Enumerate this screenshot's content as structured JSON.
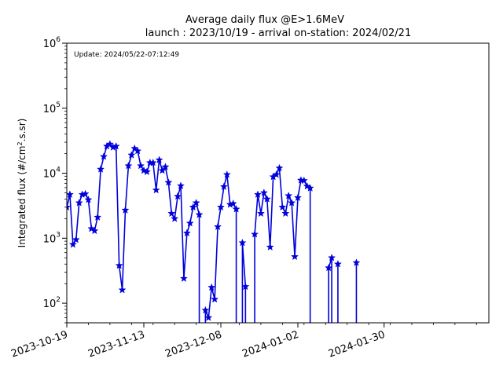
{
  "chart_data": {
    "type": "line",
    "title": "Average daily flux @E>1.6MeV",
    "subtitle": "launch : 2023/10/19 - arrival on-station: 2024/02/21",
    "annotation": "Update: 2024/05/22-07:12:49",
    "ylabel_prefix": "Integrated flux (#/cm",
    "ylabel_sup": "2",
    "ylabel_suffix": ".s.sr)",
    "yscale": "log",
    "ylim": [
      50,
      1000000
    ],
    "xlim": [
      "2023-10-19",
      "2024-03-04"
    ],
    "grid": false,
    "marker": "star",
    "line_color": "#0000dd",
    "y_ticks": [
      {
        "value": 100,
        "base": "10",
        "exp": "2"
      },
      {
        "value": 1000,
        "base": "10",
        "exp": "3"
      },
      {
        "value": 10000,
        "base": "10",
        "exp": "4"
      },
      {
        "value": 100000,
        "base": "10",
        "exp": "5"
      },
      {
        "value": 1000000,
        "base": "10",
        "exp": "6"
      }
    ],
    "x_ticks": [
      "2023-10-19",
      "2023-11-13",
      "2023-12-08",
      "2024-01-02",
      "2024-01-30"
    ],
    "series": [
      {
        "values": [
          [
            "2023-10-19",
            3000
          ],
          [
            "2023-10-20",
            4700
          ],
          [
            "2023-10-21",
            800
          ],
          [
            "2023-10-22",
            950
          ],
          [
            "2023-10-23",
            3500
          ],
          [
            "2023-10-24",
            4700
          ],
          [
            "2023-10-25",
            4800
          ],
          [
            "2023-10-26",
            3900
          ],
          [
            "2023-10-27",
            1400
          ],
          [
            "2023-10-28",
            1300
          ],
          [
            "2023-10-29",
            2100
          ],
          [
            "2023-10-30",
            11500
          ],
          [
            "2023-10-31",
            18000
          ],
          [
            "2023-11-01",
            26000
          ],
          [
            "2023-11-02",
            28000
          ],
          [
            "2023-11-03",
            25000
          ],
          [
            "2023-11-04",
            26000
          ],
          [
            "2023-11-05",
            380
          ],
          [
            "2023-11-06",
            160
          ],
          [
            "2023-11-07",
            2700
          ],
          [
            "2023-11-08",
            13000
          ],
          [
            "2023-11-09",
            19000
          ],
          [
            "2023-11-10",
            24000
          ],
          [
            "2023-11-11",
            22000
          ],
          [
            "2023-11-12",
            13000
          ],
          [
            "2023-11-13",
            11000
          ],
          [
            "2023-11-14",
            10500
          ],
          [
            "2023-11-15",
            14500
          ],
          [
            "2023-11-16",
            14500
          ],
          [
            "2023-11-17",
            5500
          ],
          [
            "2023-11-18",
            16000
          ],
          [
            "2023-11-19",
            11000
          ],
          [
            "2023-11-20",
            12500
          ],
          [
            "2023-11-21",
            7200
          ],
          [
            "2023-11-22",
            2400
          ],
          [
            "2023-11-23",
            2000
          ],
          [
            "2023-11-24",
            4400
          ],
          [
            "2023-11-25",
            6400
          ],
          [
            "2023-11-26",
            240
          ],
          [
            "2023-11-27",
            1200
          ],
          [
            "2023-11-28",
            1700
          ],
          [
            "2023-11-29",
            3000
          ],
          [
            "2023-11-30",
            3500
          ],
          [
            "2023-12-01",
            2300
          ],
          [
            "2023-12-02",
            null
          ],
          [
            "2023-12-03",
            78
          ],
          [
            "2023-12-04",
            60
          ],
          [
            "2023-12-05",
            175
          ],
          [
            "2023-12-06",
            115
          ],
          [
            "2023-12-07",
            1500
          ],
          [
            "2023-12-08",
            3000
          ],
          [
            "2023-12-09",
            6200
          ],
          [
            "2023-12-10",
            9500
          ],
          [
            "2023-12-11",
            3300
          ],
          [
            "2023-12-12",
            3400
          ],
          [
            "2023-12-13",
            2800
          ],
          [
            "2023-12-14",
            null
          ],
          [
            "2023-12-15",
            850
          ],
          [
            "2023-12-16",
            180
          ],
          [
            "2023-12-17",
            null
          ],
          [
            "2023-12-18",
            null
          ],
          [
            "2023-12-19",
            1150
          ],
          [
            "2023-12-20",
            4700
          ],
          [
            "2023-12-21",
            2400
          ],
          [
            "2023-12-22",
            5000
          ],
          [
            "2023-12-23",
            4000
          ],
          [
            "2023-12-24",
            730
          ],
          [
            "2023-12-25",
            8800
          ],
          [
            "2023-12-26",
            9500
          ],
          [
            "2023-12-27",
            12000
          ],
          [
            "2023-12-28",
            3000
          ],
          [
            "2023-12-29",
            2400
          ],
          [
            "2023-12-30",
            4500
          ],
          [
            "2023-12-31",
            3500
          ],
          [
            "2024-01-01",
            520
          ],
          [
            "2024-01-02",
            4200
          ],
          [
            "2024-01-03",
            7800
          ],
          [
            "2024-01-04",
            7700
          ],
          [
            "2024-01-05",
            6300
          ],
          [
            "2024-01-06",
            5900
          ],
          [
            "2024-01-07",
            null
          ],
          [
            "2024-01-08",
            null
          ],
          [
            "2024-01-09",
            null
          ],
          [
            "2024-01-10",
            null
          ],
          [
            "2024-01-11",
            null
          ],
          [
            "2024-01-12",
            350
          ],
          [
            "2024-01-13",
            500
          ],
          [
            "2024-01-14",
            null
          ],
          [
            "2024-01-15",
            400
          ],
          [
            "2024-01-16",
            null
          ],
          [
            "2024-01-17",
            null
          ],
          [
            "2024-01-18",
            null
          ],
          [
            "2024-01-19",
            null
          ],
          [
            "2024-01-20",
            null
          ],
          [
            "2024-01-21",
            420
          ]
        ]
      }
    ]
  }
}
